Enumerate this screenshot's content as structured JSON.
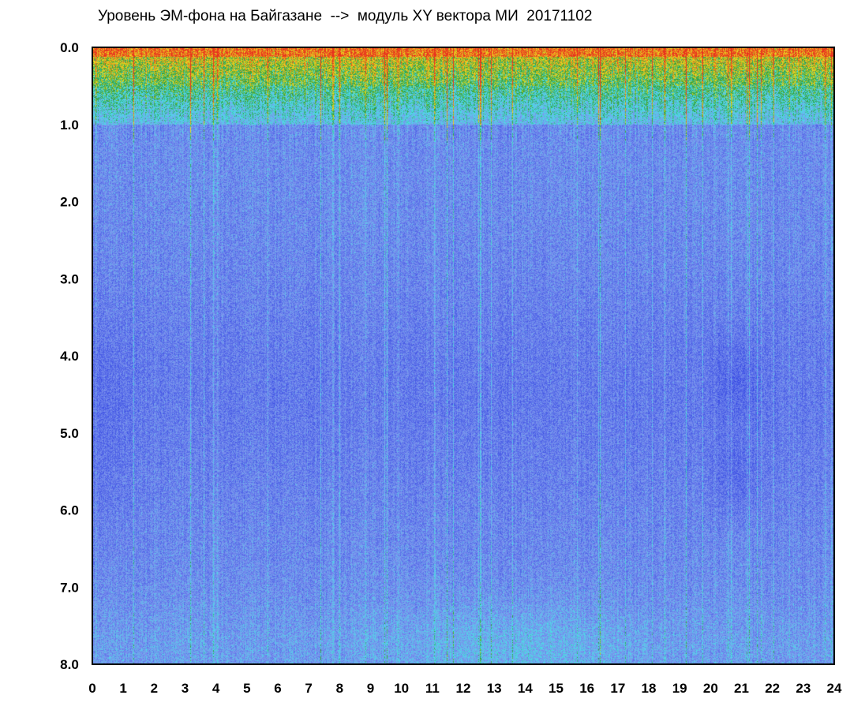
{
  "chart_data": {
    "type": "heatmap",
    "title": "Уровень ЭМ-фона на Байгазане  -->  модуль XY вектора МИ  20171102",
    "xlabel": "",
    "ylabel": "",
    "x_range": [
      0,
      24
    ],
    "y_range": [
      0.0,
      8.0
    ],
    "y_inverted": true,
    "x_ticks": [
      "0",
      "1",
      "2",
      "3",
      "4",
      "5",
      "6",
      "7",
      "8",
      "9",
      "10",
      "11",
      "12",
      "13",
      "14",
      "15",
      "16",
      "17",
      "18",
      "19",
      "20",
      "21",
      "22",
      "23",
      "24"
    ],
    "y_ticks": [
      "0.0",
      "1.0",
      "2.0",
      "3.0",
      "4.0",
      "5.0",
      "6.0",
      "7.0",
      "8.0"
    ],
    "grid": false,
    "colors": {
      "high": "#e8321e",
      "upper": "#f0e020",
      "mid": "#2a9a3a",
      "lowmid": "#4ae0e8",
      "low": "#7e96ee",
      "lowest": "#1e2ee0"
    }
  }
}
